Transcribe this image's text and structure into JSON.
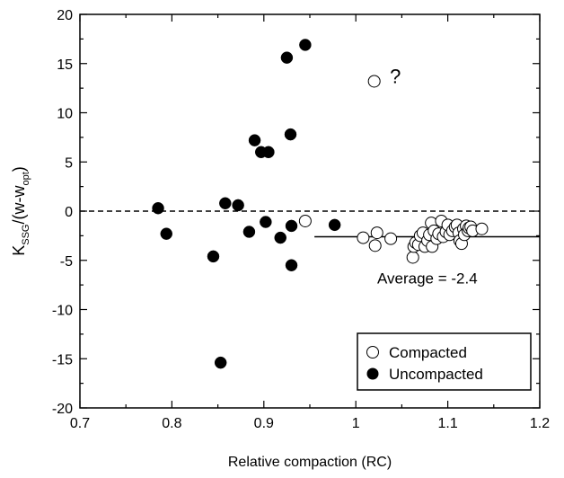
{
  "chart_data": {
    "type": "scatter",
    "title": "",
    "xlabel": "Relative compaction (RC)",
    "ylabel": {
      "main_before": "K",
      "sub1": "SSG",
      "main_mid": "/(w-w",
      "sub2": "opt",
      "main_after": ")"
    },
    "xlim": [
      0.7,
      1.2
    ],
    "ylim": [
      -20,
      20
    ],
    "x_ticks": [
      0.7,
      0.8,
      0.9,
      1.0,
      1.1,
      1.2
    ],
    "x_tick_labels": [
      "0.7",
      "0.8",
      "0.9",
      "1",
      "1.1",
      "1.2"
    ],
    "y_ticks": [
      -20,
      -15,
      -10,
      -5,
      0,
      5,
      10,
      15,
      20
    ],
    "y_tick_labels": [
      "-20",
      "-15",
      "-10",
      "-5",
      "0",
      "5",
      "10",
      "15",
      "20"
    ],
    "grid": false,
    "legend_position": "bottom-right",
    "reference_line_y": 0,
    "average": {
      "value": -2.4,
      "x_range": [
        0.955,
        1.2
      ],
      "y": -2.6,
      "label": "Average = -2.4"
    },
    "annotation": {
      "text": "?",
      "x": 1.037,
      "y": 13.4
    },
    "series": [
      {
        "name": "Compacted",
        "marker": "open-circle",
        "points": [
          [
            1.02,
            13.2
          ],
          [
            1.008,
            -2.7
          ],
          [
            1.021,
            -3.5
          ],
          [
            1.023,
            -2.2
          ],
          [
            1.038,
            -2.8
          ],
          [
            1.062,
            -4.7
          ],
          [
            1.063,
            -3.6
          ],
          [
            1.065,
            -3.2
          ],
          [
            1.068,
            -3.4
          ],
          [
            1.07,
            -2.5
          ],
          [
            1.073,
            -2.2
          ],
          [
            1.075,
            -3.6
          ],
          [
            1.078,
            -3.0
          ],
          [
            1.08,
            -2.4
          ],
          [
            1.082,
            -1.2
          ],
          [
            1.083,
            -3.6
          ],
          [
            1.085,
            -2.0
          ],
          [
            1.088,
            -2.8
          ],
          [
            1.09,
            -2.3
          ],
          [
            1.093,
            -1.0
          ],
          [
            1.095,
            -2.6
          ],
          [
            1.098,
            -2.1
          ],
          [
            1.1,
            -1.4
          ],
          [
            1.102,
            -2.4
          ],
          [
            1.105,
            -2.0
          ],
          [
            1.108,
            -1.6
          ],
          [
            1.11,
            -1.4
          ],
          [
            1.112,
            -2.2
          ],
          [
            1.113,
            -3.0
          ],
          [
            1.115,
            -3.3
          ],
          [
            1.117,
            -1.8
          ],
          [
            1.118,
            -2.4
          ],
          [
            1.12,
            -1.5
          ],
          [
            1.122,
            -2.0
          ],
          [
            1.123,
            -1.7
          ],
          [
            1.125,
            -1.6
          ],
          [
            1.127,
            -2.0
          ],
          [
            1.137,
            -1.8
          ],
          [
            0.945,
            -1.0
          ]
        ]
      },
      {
        "name": "Uncompacted",
        "marker": "filled-circle",
        "points": [
          [
            0.785,
            0.3
          ],
          [
            0.794,
            -2.3
          ],
          [
            0.845,
            -4.6
          ],
          [
            0.853,
            -15.4
          ],
          [
            0.858,
            0.8
          ],
          [
            0.872,
            0.6
          ],
          [
            0.884,
            -2.1
          ],
          [
            0.89,
            7.2
          ],
          [
            0.897,
            6.0
          ],
          [
            0.902,
            -1.1
          ],
          [
            0.905,
            6.0
          ],
          [
            0.918,
            -2.7
          ],
          [
            0.925,
            15.6
          ],
          [
            0.929,
            7.8
          ],
          [
            0.93,
            -5.5
          ],
          [
            0.93,
            -1.5
          ],
          [
            0.945,
            16.9
          ],
          [
            0.977,
            -1.4
          ]
        ]
      }
    ]
  }
}
